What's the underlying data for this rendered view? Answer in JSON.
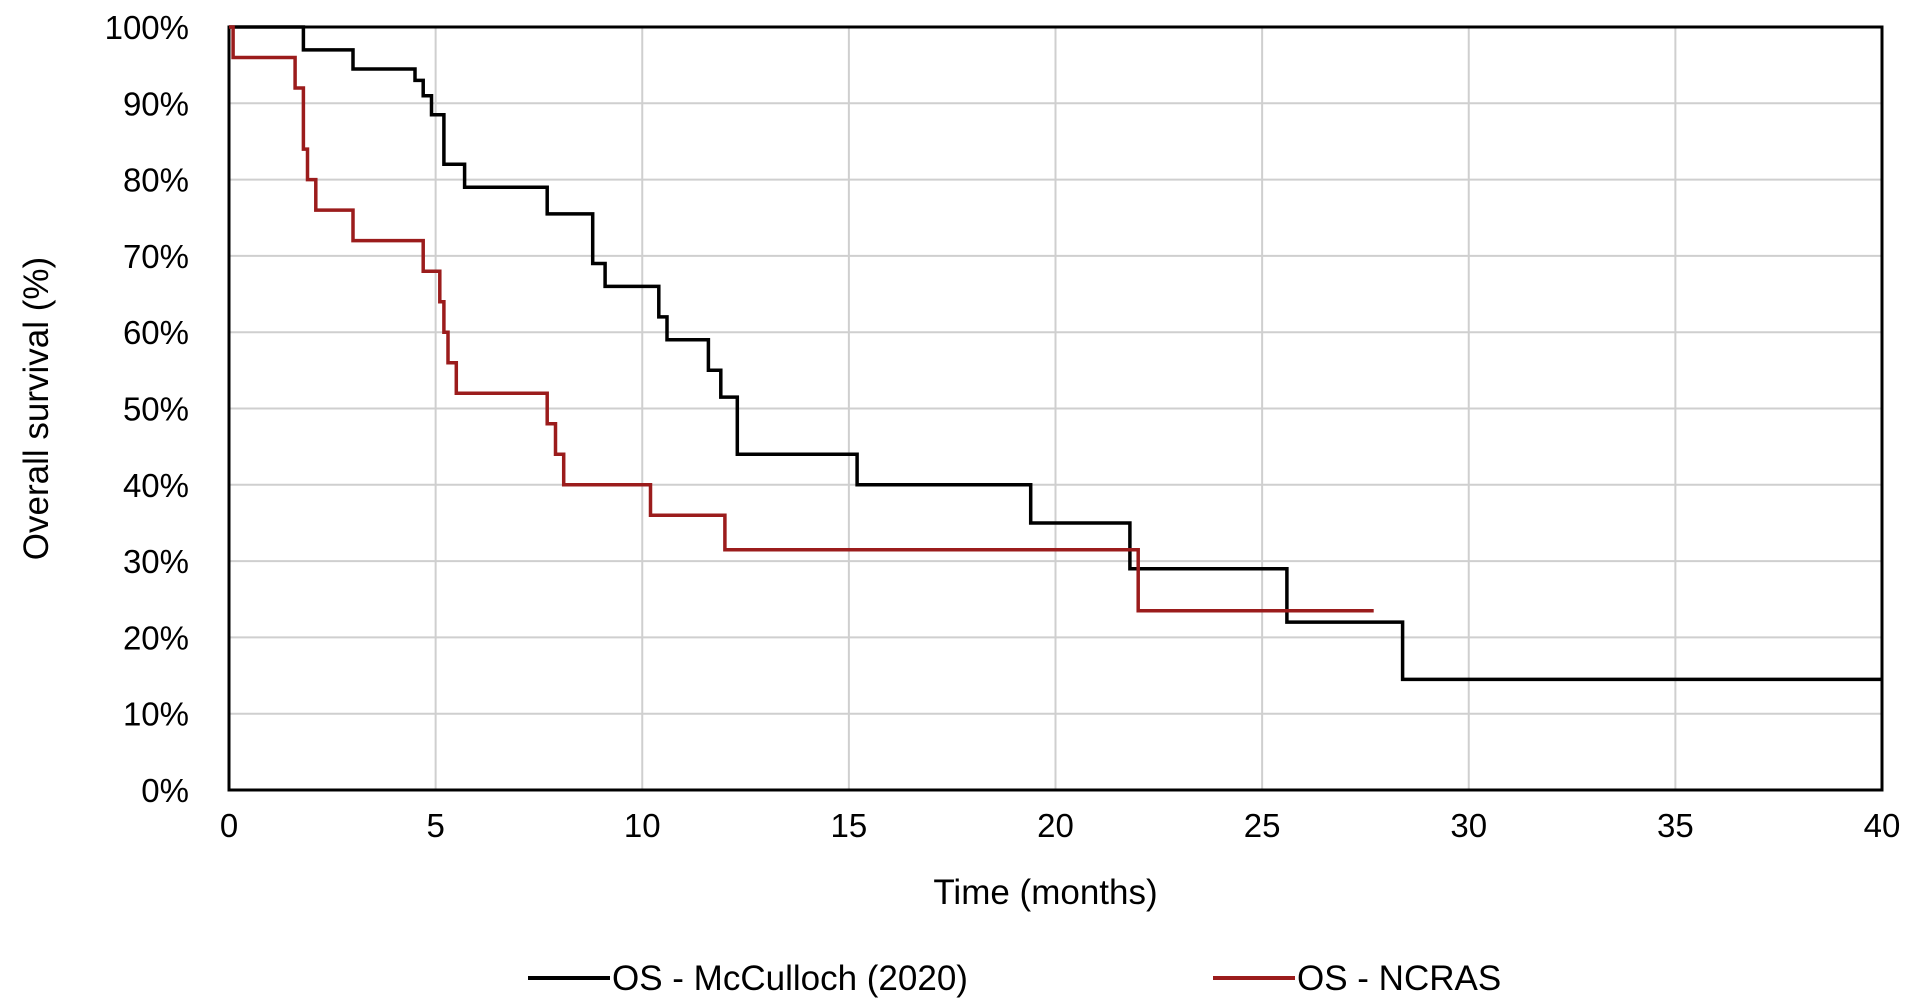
{
  "chart_data": {
    "type": "line",
    "title": "",
    "xlabel": "Time (months)",
    "ylabel": "Overall survival (%)",
    "xlim": [
      0,
      40
    ],
    "ylim": [
      0,
      100
    ],
    "x_ticks": [
      0,
      5,
      10,
      15,
      20,
      25,
      30,
      35,
      40
    ],
    "x_tick_labels": [
      "0",
      "5",
      "10",
      "15",
      "20",
      "25",
      "30",
      "35",
      "40"
    ],
    "y_ticks": [
      0,
      10,
      20,
      30,
      40,
      50,
      60,
      70,
      80,
      90,
      100
    ],
    "y_tick_labels": [
      "0%",
      "10%",
      "20%",
      "30%",
      "40%",
      "50%",
      "60%",
      "70%",
      "80%",
      "90%",
      "100%"
    ],
    "grid": true,
    "legend_position": "bottom",
    "step": true,
    "series": [
      {
        "name": "OS - McCulloch (2020)",
        "color": "#000000",
        "x": [
          0,
          1.8,
          3.0,
          4.5,
          4.7,
          4.9,
          5.2,
          5.7,
          7.7,
          8.8,
          9.1,
          10.4,
          10.6,
          11.6,
          11.9,
          12.3,
          12.6,
          15.2,
          19.4,
          21.8,
          25.6,
          28.4,
          40
        ],
        "y": [
          100,
          97,
          94.5,
          93,
          91,
          88.5,
          82,
          79,
          75.5,
          69,
          66,
          62,
          59,
          55,
          51.5,
          44,
          44,
          40,
          35,
          29,
          22,
          14.5,
          14.5
        ]
      },
      {
        "name": "OS - NCRAS",
        "color": "#9b1c1c",
        "x": [
          0,
          0.1,
          0.2,
          1.6,
          1.8,
          1.9,
          2.1,
          3.0,
          4.7,
          5.1,
          5.2,
          5.3,
          5.5,
          7.7,
          7.9,
          8.1,
          10.2,
          12.0,
          22.0,
          27.7
        ],
        "y": [
          100,
          96,
          96,
          92,
          84,
          80,
          76,
          72,
          68,
          64,
          60,
          56,
          52,
          48,
          44,
          40,
          36,
          31.5,
          23.5,
          23.5
        ]
      }
    ]
  }
}
